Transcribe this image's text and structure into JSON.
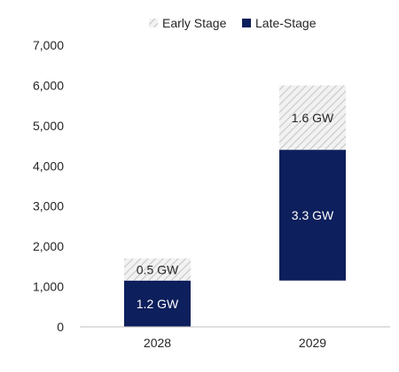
{
  "chart_data": {
    "type": "bar",
    "stacked": true,
    "categories": [
      "2028",
      "2029"
    ],
    "series": [
      {
        "name": "Late-Stage",
        "pattern": "solid",
        "starts": [
          0,
          1150
        ],
        "values": [
          1150,
          3250
        ],
        "labels": [
          "1.2 GW",
          "3.3 GW"
        ]
      },
      {
        "name": "Early Stage",
        "pattern": "hatched",
        "starts": [
          1150,
          4400
        ],
        "values": [
          550,
          1600
        ],
        "labels": [
          "0.5 GW",
          "1.6 GW"
        ]
      }
    ],
    "ylim": [
      0,
      7000
    ],
    "yticks": [
      "0",
      "1,000",
      "2,000",
      "3,000",
      "4,000",
      "5,000",
      "6,000",
      "7,000"
    ],
    "grid": false,
    "legend_position": "top-center"
  },
  "colors": {
    "late_stage": "#0d1f5c",
    "early_stage_stripe": "#c8c8c8",
    "early_stage_bg": "#f2f2f2",
    "axis": "#bfbfbf",
    "text": "#262626",
    "label_on_dark": "#ffffff",
    "label_on_light": "#262626"
  }
}
